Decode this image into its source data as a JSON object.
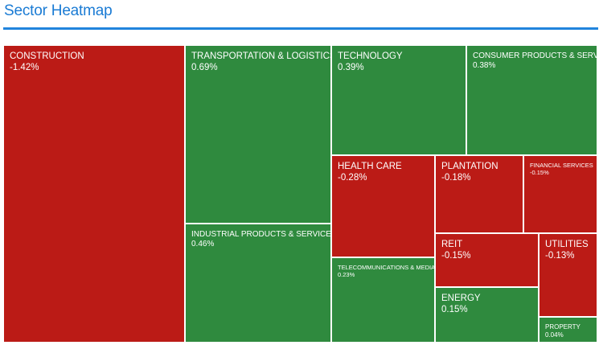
{
  "header": {
    "title": "Sector Heatmap"
  },
  "colors": {
    "up": "#2f8a3e",
    "down": "#bb1b16",
    "accent": "#2184dd",
    "border": "#ffffff"
  },
  "chart_data": {
    "type": "heatmap",
    "title": "Sector Heatmap",
    "sectors": [
      {
        "name": "CONSTRUCTION",
        "change": -1.42,
        "label": "-1.42%"
      },
      {
        "name": "TRANSPORTATION & LOGISTICS",
        "change": 0.69,
        "label": "0.69%"
      },
      {
        "name": "INDUSTRIAL PRODUCTS & SERVICES",
        "change": 0.46,
        "label": "0.46%"
      },
      {
        "name": "TECHNOLOGY",
        "change": 0.39,
        "label": "0.39%"
      },
      {
        "name": "CONSUMER PRODUCTS & SERVICES",
        "change": 0.38,
        "label": "0.38%"
      },
      {
        "name": "HEALTH CARE",
        "change": -0.28,
        "label": "-0.28%"
      },
      {
        "name": "PLANTATION",
        "change": -0.18,
        "label": "-0.18%"
      },
      {
        "name": "FINANCIAL SERVICES",
        "change": -0.15,
        "label": "-0.15%"
      },
      {
        "name": "TELECOMMUNICATIONS & MEDIA",
        "change": 0.23,
        "label": "0.23%"
      },
      {
        "name": "REIT",
        "change": -0.15,
        "label": "-0.15%"
      },
      {
        "name": "UTILITIES",
        "change": -0.13,
        "label": "-0.13%"
      },
      {
        "name": "ENERGY",
        "change": 0.15,
        "label": "0.15%"
      },
      {
        "name": "PROPERTY",
        "change": 0.04,
        "label": "0.04%"
      }
    ]
  }
}
